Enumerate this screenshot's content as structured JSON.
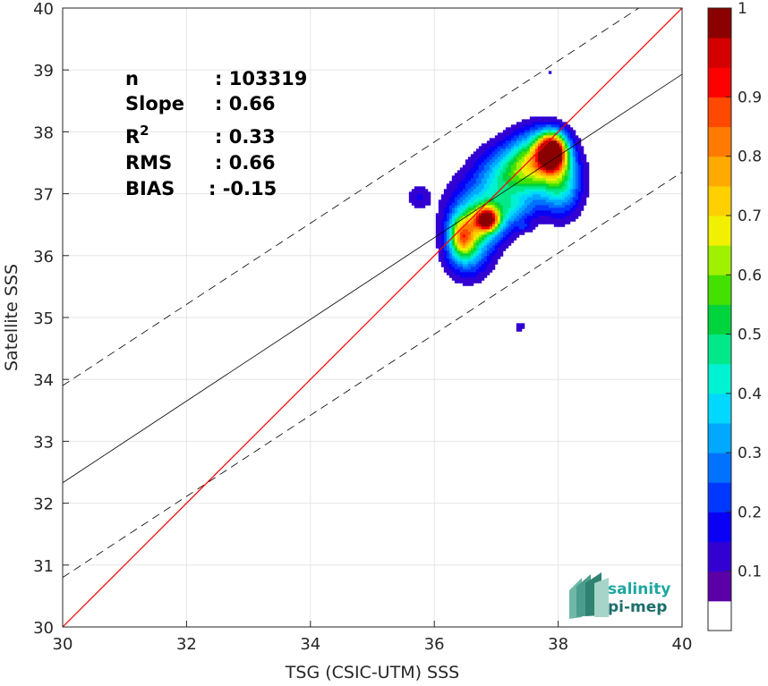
{
  "chart_data": {
    "type": "heatmap",
    "title": "",
    "xlabel": "TSG (CSIC-UTM) SSS",
    "ylabel": "Satellite SSS",
    "xlim": [
      30,
      40
    ],
    "ylim": [
      30,
      40
    ],
    "xticks": [
      "30",
      "32",
      "34",
      "36",
      "38",
      "40"
    ],
    "yticks": [
      "30",
      "31",
      "32",
      "33",
      "34",
      "35",
      "36",
      "37",
      "38",
      "39",
      "40"
    ],
    "grid": true,
    "stats": {
      "n_label": "n",
      "n_value": ": 103319",
      "slope_label": "Slope",
      "slope_value": ": 0.66",
      "r2_label": "R",
      "r2_sup": "2",
      "r2_value": ": 0.33",
      "rms_label": "RMS",
      "rms_value": ": 0.66",
      "bias_label": "BIAS",
      "bias_value": ": -0.15"
    },
    "lines": {
      "identity": {
        "from": [
          30,
          30
        ],
        "to": [
          40,
          40
        ],
        "color": "#ff0000"
      },
      "regression": {
        "from": [
          30,
          32.33
        ],
        "to": [
          40,
          38.93
        ],
        "color": "#000000"
      },
      "upper_bound": {
        "from": [
          30,
          33.9
        ],
        "to": [
          39.3,
          40
        ],
        "color": "#000000",
        "dashed": true
      },
      "lower_bound": {
        "from": [
          30,
          30.8
        ],
        "to": [
          40,
          37.35
        ],
        "color": "#000000",
        "dashed": true
      }
    },
    "density": {
      "description_levels": [
        0.05,
        0.1,
        0.15,
        0.2,
        0.25,
        0.3,
        0.35,
        0.4,
        0.45,
        0.5,
        0.55,
        0.6,
        0.65,
        0.7,
        0.75,
        0.8,
        0.85,
        0.9,
        0.95
      ],
      "blobs": [
        {
          "x": 37.9,
          "y": 37.68,
          "sx": 0.16,
          "sy": 0.2,
          "amp": 1.0
        },
        {
          "x": 37.65,
          "y": 37.55,
          "sx": 0.28,
          "sy": 0.32,
          "amp": 0.45
        },
        {
          "x": 38.05,
          "y": 37.2,
          "sx": 0.22,
          "sy": 0.35,
          "amp": 0.38
        },
        {
          "x": 37.25,
          "y": 37.35,
          "sx": 0.35,
          "sy": 0.3,
          "amp": 0.32
        },
        {
          "x": 36.85,
          "y": 36.58,
          "sx": 0.12,
          "sy": 0.12,
          "amp": 0.7
        },
        {
          "x": 36.75,
          "y": 36.55,
          "sx": 0.3,
          "sy": 0.25,
          "amp": 0.42
        },
        {
          "x": 36.45,
          "y": 36.3,
          "sx": 0.14,
          "sy": 0.22,
          "amp": 0.45
        },
        {
          "x": 36.55,
          "y": 36.1,
          "sx": 0.25,
          "sy": 0.3,
          "amp": 0.3
        },
        {
          "x": 36.95,
          "y": 36.95,
          "sx": 0.45,
          "sy": 0.3,
          "amp": 0.2
        },
        {
          "x": 37.3,
          "y": 36.75,
          "sx": 0.25,
          "sy": 0.15,
          "amp": 0.12
        },
        {
          "x": 37.45,
          "y": 36.47,
          "sx": 0.09,
          "sy": 0.05,
          "amp": 0.09
        },
        {
          "x": 35.75,
          "y": 36.95,
          "sx": 0.13,
          "sy": 0.14,
          "amp": 0.1
        },
        {
          "x": 37.38,
          "y": 34.85,
          "sx": 0.08,
          "sy": 0.06,
          "amp": 0.08
        },
        {
          "x": 37.88,
          "y": 38.95,
          "sx": 0.04,
          "sy": 0.03,
          "amp": 0.07
        }
      ]
    },
    "colorbar": {
      "colors": [
        "#ffffff",
        "#5a00a6",
        "#3300d2",
        "#0a00f5",
        "#0038ff",
        "#0072ff",
        "#00a8ff",
        "#00d8ff",
        "#00f2d2",
        "#00e88a",
        "#00d43c",
        "#44e000",
        "#a0f000",
        "#f0f000",
        "#ffd000",
        "#ffaa00",
        "#ff7a00",
        "#ff4800",
        "#ff0000",
        "#d40000",
        "#8b0000"
      ],
      "ticks": [
        "0.1",
        "0.2",
        "0.3",
        "0.4",
        "0.5",
        "0.6",
        "0.7",
        "0.8",
        "0.9",
        "1"
      ],
      "tick_values": [
        0.1,
        0.2,
        0.3,
        0.4,
        0.5,
        0.6,
        0.7,
        0.8,
        0.9,
        1.0
      ]
    },
    "logo": {
      "line1": "salinity",
      "line2": "pi-mep"
    }
  }
}
